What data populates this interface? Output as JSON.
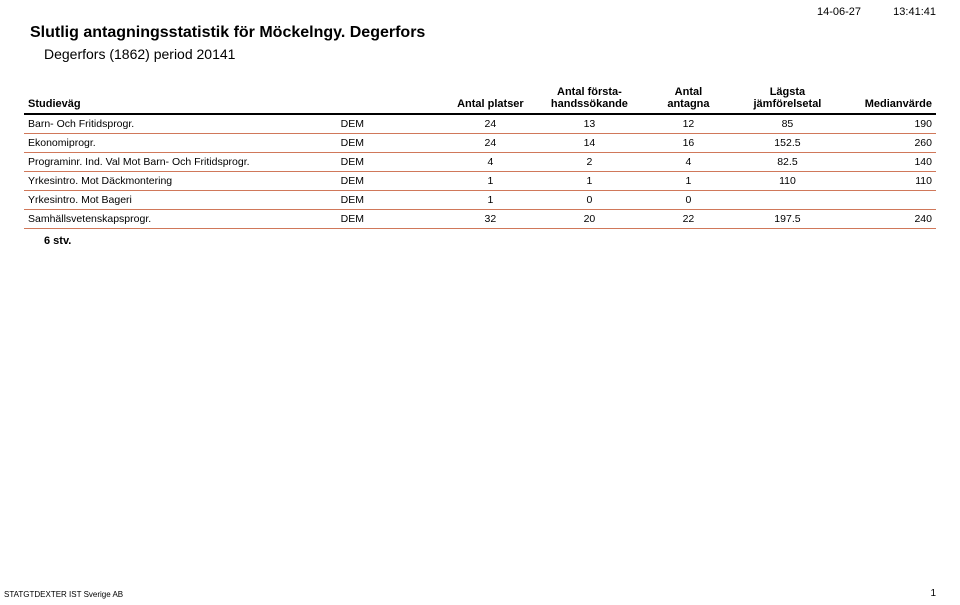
{
  "header": {
    "date": "14-06-27",
    "time": "13:41:41",
    "title": "Slutlig antagningsstatistik för  Möckelngy. Degerfors",
    "subtitle": "Degerfors (1862) period 20141"
  },
  "table": {
    "columns": {
      "studievag": "Studieväg",
      "antal_platser": "Antal platser",
      "antal_forsta": "Antal första-\nhandssökande",
      "antal_antagna": "Antal\nantagna",
      "lagsta": "Lägsta\njämförelsetal",
      "median": "Medianvärde"
    },
    "rows": [
      {
        "name": "Barn- Och Fritidsprogr.",
        "code": "DEM",
        "platser": "24",
        "forsta": "13",
        "antagna": "12",
        "lagsta": "85",
        "median": "190"
      },
      {
        "name": "Ekonomiprogr.",
        "code": "DEM",
        "platser": "24",
        "forsta": "14",
        "antagna": "16",
        "lagsta": "152.5",
        "median": "260"
      },
      {
        "name": "Programinr. Ind. Val Mot Barn- Och Fritidsprogr.",
        "code": "DEM",
        "platser": "4",
        "forsta": "2",
        "antagna": "4",
        "lagsta": "82.5",
        "median": "140"
      },
      {
        "name": "Yrkesintro. Mot Däckmontering",
        "code": "DEM",
        "platser": "1",
        "forsta": "1",
        "antagna": "1",
        "lagsta": "110",
        "median": "110"
      },
      {
        "name": "Yrkesintro. Mot Bageri",
        "code": "DEM",
        "platser": "1",
        "forsta": "0",
        "antagna": "0",
        "lagsta": "",
        "median": ""
      },
      {
        "name": "Samhällsvetenskapsprogr.",
        "code": "DEM",
        "platser": "32",
        "forsta": "20",
        "antagna": "22",
        "lagsta": "197.5",
        "median": "240"
      }
    ],
    "summary": "6  stv."
  },
  "footer": {
    "text": "STATGTDEXTER IST Sverige AB",
    "page": "1"
  },
  "style": {
    "row_border_color": "#d0785a",
    "header_border_color": "#000000"
  }
}
